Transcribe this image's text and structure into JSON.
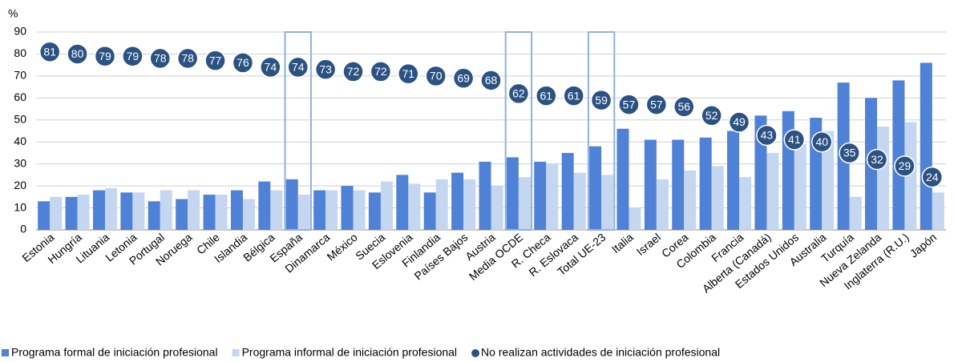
{
  "chart_data": {
    "type": "bar_dot",
    "y_label": "%",
    "categories": [
      "Estonia",
      "Hungría",
      "Lituania",
      "Letonia",
      "Portugal",
      "Noruega",
      "Chile",
      "Islandia",
      "Bélgica",
      "España",
      "Dinamarca",
      "México",
      "Suecia",
      "Eslovenia",
      "Finlandia",
      "Países Bajos",
      "Austria",
      "Media OCDE",
      "R. Checa",
      "R. Eslovaca",
      "Total UE-23",
      "Italia",
      "Israel",
      "Corea",
      "Colombia",
      "Francia",
      "Alberta (Canadá)",
      "Estados Unidos",
      "Australia",
      "Turquía",
      "Nueva Zelanda",
      "Inglaterra (R.U.)",
      "Japón"
    ],
    "series": [
      {
        "name": "Programa formal de iniciación profesional",
        "color": "#4f81d6",
        "kind": "bar",
        "values": [
          13,
          15,
          18,
          17,
          13,
          14,
          16,
          18,
          22,
          23,
          18,
          20,
          17,
          25,
          17,
          26,
          31,
          33,
          31,
          35,
          38,
          46,
          41,
          41,
          42,
          45,
          52,
          54,
          51,
          67,
          60,
          68,
          76
        ]
      },
      {
        "name": "Programa informal de iniciación profesional",
        "color": "#c5d6f1",
        "kind": "bar",
        "values": [
          15,
          16,
          19,
          17,
          18,
          18,
          16,
          14,
          18,
          16,
          18,
          18,
          22,
          21,
          23,
          23,
          20,
          24,
          30,
          26,
          25,
          10,
          23,
          27,
          29,
          24,
          35,
          39,
          45,
          15,
          47,
          49,
          17
        ]
      },
      {
        "name": "No realizan actividades de iniciación profesional",
        "color": "#2b5282",
        "kind": "dot",
        "values": [
          81,
          80,
          79,
          79,
          78,
          78,
          77,
          76,
          74,
          74,
          73,
          72,
          72,
          71,
          70,
          69,
          68,
          62,
          61,
          61,
          59,
          57,
          57,
          56,
          52,
          49,
          43,
          41,
          40,
          35,
          32,
          29,
          24
        ]
      }
    ],
    "highlight": [
      9,
      17,
      20
    ],
    "ylim": [
      0,
      90
    ],
    "yticks": [
      0,
      10,
      20,
      30,
      40,
      50,
      60,
      70,
      80,
      90
    ],
    "grid": true
  }
}
